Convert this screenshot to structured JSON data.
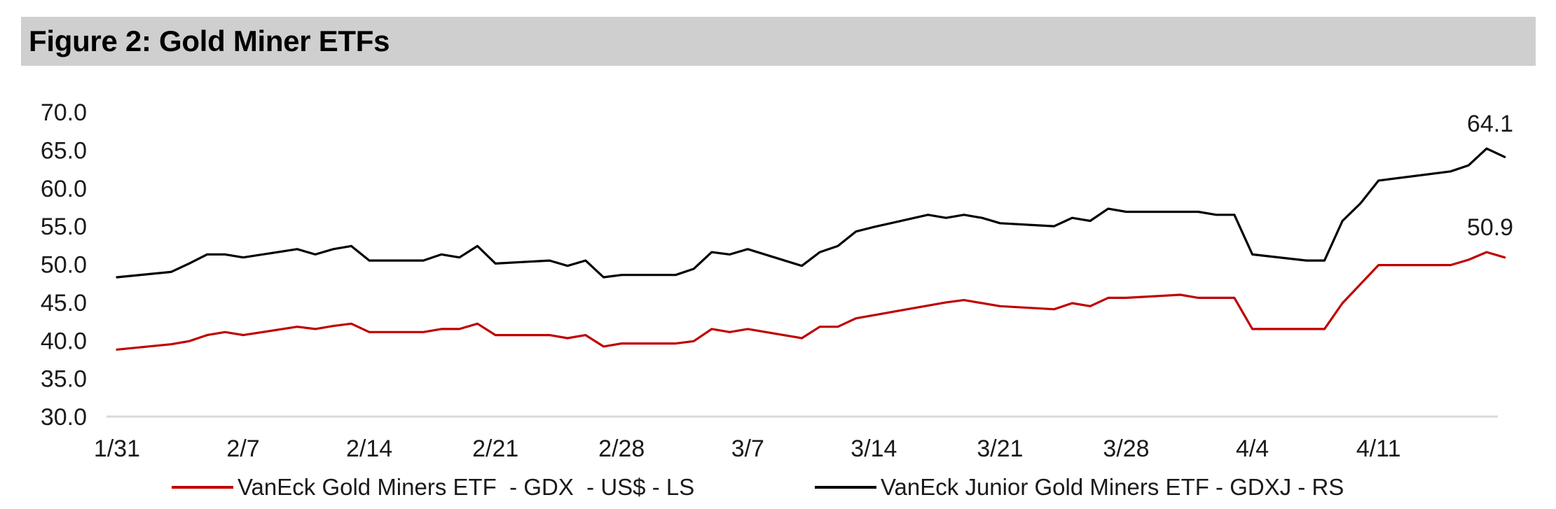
{
  "figure": {
    "title": "Figure 2: Gold Miner ETFs"
  },
  "chart_data": {
    "type": "line",
    "title": "Figure 2: Gold Miner ETFs",
    "xlabel": "",
    "ylabel": "",
    "ylim": [
      30,
      70
    ],
    "y_ticks": [
      "30.0",
      "35.0",
      "40.0",
      "45.0",
      "50.0",
      "55.0",
      "60.0",
      "65.0",
      "70.0"
    ],
    "x_tick_labels": [
      "1/31",
      "2/7",
      "2/14",
      "2/21",
      "2/28",
      "3/7",
      "3/14",
      "3/21",
      "3/28",
      "4/4",
      "4/11"
    ],
    "x_tick_days": [
      0,
      7,
      14,
      21,
      28,
      35,
      42,
      49,
      56,
      63,
      70
    ],
    "x_range": [
      0,
      76
    ],
    "legend_position": "bottom",
    "series": [
      {
        "name": "VanEck Gold Miners ETF  - GDX  - US$ - LS",
        "color": "#c00000",
        "end_label": "50.9",
        "points": [
          [
            0,
            38.8
          ],
          [
            3,
            39.5
          ],
          [
            4,
            39.9
          ],
          [
            5,
            40.7
          ],
          [
            6,
            41.1
          ],
          [
            7,
            40.7
          ],
          [
            10,
            41.8
          ],
          [
            11,
            41.5
          ],
          [
            12,
            41.9
          ],
          [
            13,
            42.2
          ],
          [
            14,
            41.1
          ],
          [
            17,
            41.1
          ],
          [
            18,
            41.5
          ],
          [
            19,
            41.5
          ],
          [
            20,
            42.2
          ],
          [
            21,
            40.7
          ],
          [
            24,
            40.7
          ],
          [
            25,
            40.3
          ],
          [
            26,
            40.7
          ],
          [
            27,
            39.2
          ],
          [
            28,
            39.6
          ],
          [
            31,
            39.6
          ],
          [
            32,
            39.9
          ],
          [
            33,
            41.5
          ],
          [
            34,
            41.1
          ],
          [
            35,
            41.5
          ],
          [
            38,
            40.3
          ],
          [
            39,
            41.8
          ],
          [
            40,
            41.8
          ],
          [
            41,
            42.9
          ],
          [
            46,
            45.0
          ],
          [
            47,
            45.3
          ],
          [
            49,
            44.5
          ],
          [
            52,
            44.1
          ],
          [
            53,
            44.9
          ],
          [
            54,
            44.5
          ],
          [
            55,
            45.6
          ],
          [
            56,
            45.6
          ],
          [
            59,
            46.0
          ],
          [
            60,
            45.6
          ],
          [
            62,
            45.6
          ],
          [
            63,
            41.5
          ],
          [
            67,
            41.5
          ],
          [
            68,
            44.9
          ],
          [
            70,
            49.9
          ],
          [
            74,
            49.9
          ],
          [
            75,
            50.6
          ],
          [
            76,
            51.6
          ],
          [
            77,
            50.9
          ]
        ]
      },
      {
        "name": "VanEck Junior Gold Miners ETF - GDXJ - RS",
        "color": "#000000",
        "end_label": "64.1",
        "points": [
          [
            0,
            48.3
          ],
          [
            3,
            49.0
          ],
          [
            4,
            50.1
          ],
          [
            5,
            51.3
          ],
          [
            6,
            51.3
          ],
          [
            7,
            50.9
          ],
          [
            10,
            52.0
          ],
          [
            11,
            51.3
          ],
          [
            12,
            52.0
          ],
          [
            13,
            52.4
          ],
          [
            14,
            50.5
          ],
          [
            17,
            50.5
          ],
          [
            18,
            51.3
          ],
          [
            19,
            50.9
          ],
          [
            20,
            52.4
          ],
          [
            21,
            50.1
          ],
          [
            24,
            50.5
          ],
          [
            25,
            49.8
          ],
          [
            26,
            50.5
          ],
          [
            27,
            48.3
          ],
          [
            28,
            48.6
          ],
          [
            31,
            48.6
          ],
          [
            32,
            49.4
          ],
          [
            33,
            51.6
          ],
          [
            34,
            51.3
          ],
          [
            35,
            52.0
          ],
          [
            38,
            49.8
          ],
          [
            39,
            51.6
          ],
          [
            40,
            52.4
          ],
          [
            41,
            54.3
          ],
          [
            42,
            54.9
          ],
          [
            45,
            56.5
          ],
          [
            46,
            56.1
          ],
          [
            47,
            56.5
          ],
          [
            48,
            56.1
          ],
          [
            49,
            55.4
          ],
          [
            52,
            55.0
          ],
          [
            53,
            56.1
          ],
          [
            54,
            55.7
          ],
          [
            55,
            57.3
          ],
          [
            56,
            56.9
          ],
          [
            59,
            56.9
          ],
          [
            60,
            56.9
          ],
          [
            61,
            56.5
          ],
          [
            62,
            56.5
          ],
          [
            63,
            51.3
          ],
          [
            66,
            50.5
          ],
          [
            67,
            50.5
          ],
          [
            68,
            55.7
          ],
          [
            69,
            58.0
          ],
          [
            70,
            61.0
          ],
          [
            74,
            62.2
          ],
          [
            75,
            63.0
          ],
          [
            76,
            65.2
          ],
          [
            77,
            64.1
          ]
        ]
      }
    ]
  }
}
